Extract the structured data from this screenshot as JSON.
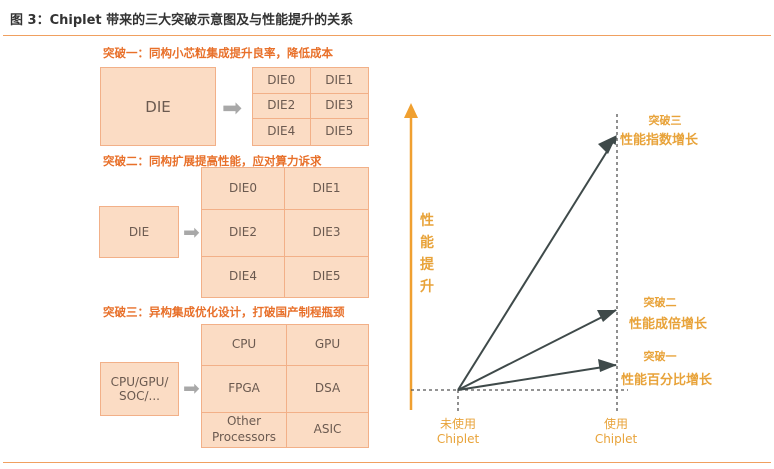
{
  "title": "图 3：Chiplet 带来的三大突破示意图及与性能提升的关系",
  "sections": [
    {
      "heading": "突破一：同构小芯粒集成提升良率，降低成本",
      "source": "DIE",
      "cells": [
        "DIE0",
        "DIE1",
        "DIE2",
        "DIE3",
        "DIE4",
        "DIE5"
      ]
    },
    {
      "heading": "突破二：同构扩展提高性能，应对算力诉求",
      "source": "DIE",
      "cells": [
        "DIE0",
        "DIE1",
        "DIE2",
        "DIE3",
        "DIE4",
        "DIE5"
      ]
    },
    {
      "heading": "突破三：异构集成优化设计，打破国产制程瓶颈",
      "source": "CPU/GPU/ SOC/...",
      "cells": [
        "CPU",
        "GPU",
        "FPGA",
        "DSA",
        "Other Processors",
        "ASIC"
      ]
    }
  ],
  "arrow_icon": "right-arrow-icon",
  "chart": {
    "y_axis_label": "性能提升",
    "x_labels": [
      {
        "line1": "未使用",
        "line2": "Chiplet"
      },
      {
        "line1": "使用",
        "line2": "Chiplet"
      }
    ],
    "outcomes": [
      {
        "name": "突破三",
        "desc": "性能指数增长"
      },
      {
        "name": "突破二",
        "desc": "性能成倍增长"
      },
      {
        "name": "突破一",
        "desc": "性能百分比增长"
      }
    ],
    "colors": {
      "axis": "#f0a030",
      "arrow": "#3f4a4a",
      "label": "#e8a33a",
      "box_fill": "#fbdcc4",
      "box_border": "#f2b088",
      "heading": "#e8702a"
    }
  }
}
